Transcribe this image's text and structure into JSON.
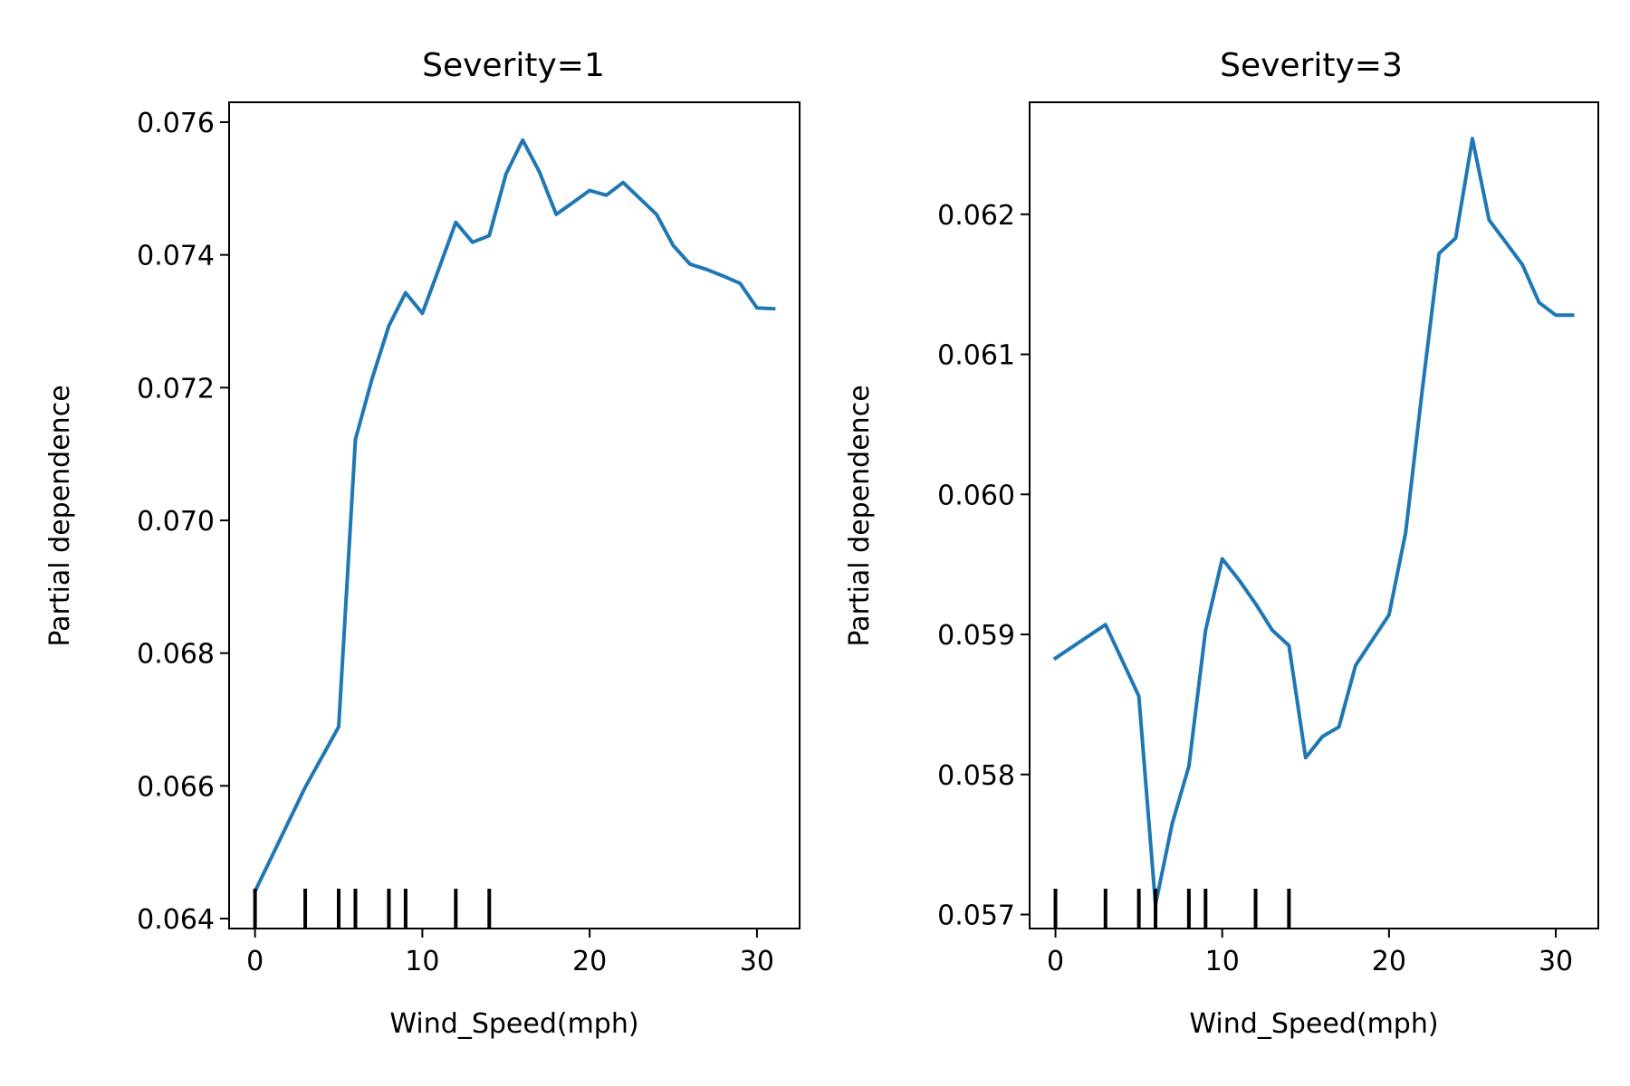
{
  "chart_data": [
    {
      "type": "line",
      "title": "Severity=1",
      "xlabel": "Wind_Speed(mph)",
      "ylabel": "Partial dependence",
      "xlim": [
        -1.55,
        32.55
      ],
      "ylim": [
        0.06385,
        0.0763
      ],
      "xticks": [
        0,
        10,
        20,
        30
      ],
      "xtick_labels": [
        "0",
        "10",
        "20",
        "30"
      ],
      "yticks": [
        0.064,
        0.066,
        0.068,
        0.07,
        0.072,
        0.074,
        0.076
      ],
      "ytick_labels": [
        "0.064",
        "0.066",
        "0.068",
        "0.070",
        "0.072",
        "0.074",
        "0.076"
      ],
      "grid": false,
      "series": [
        {
          "color": "#1f77b4",
          "x": [
            0,
            3,
            5,
            6,
            7,
            8,
            9,
            10,
            11,
            12,
            13,
            14,
            15,
            16,
            17,
            18,
            19,
            20,
            21,
            22,
            23,
            24,
            25,
            26,
            27,
            28,
            29,
            30,
            31
          ],
          "y": [
            0.06441,
            0.06598,
            0.06689,
            0.07122,
            0.07214,
            0.07293,
            0.07343,
            0.07312,
            0.0738,
            0.07449,
            0.07419,
            0.07429,
            0.07522,
            0.07573,
            0.07525,
            0.07461,
            0.07479,
            0.07497,
            0.0749,
            0.07509,
            0.07485,
            0.07461,
            0.07414,
            0.07386,
            0.07378,
            0.07368,
            0.07357,
            0.0732,
            0.07319
          ]
        }
      ],
      "rug_deciles": [
        0,
        3,
        5,
        6,
        8,
        9,
        12,
        14
      ]
    },
    {
      "type": "line",
      "title": "Severity=3",
      "xlabel": "Wind_Speed(mph)",
      "ylabel": "Partial dependence",
      "xlim": [
        -1.55,
        32.55
      ],
      "ylim": [
        0.0569,
        0.0628
      ],
      "xticks": [
        0,
        10,
        20,
        30
      ],
      "xtick_labels": [
        "0",
        "10",
        "20",
        "30"
      ],
      "yticks": [
        0.057,
        0.058,
        0.059,
        0.06,
        0.061,
        0.062
      ],
      "ytick_labels": [
        "0.057",
        "0.058",
        "0.059",
        "0.060",
        "0.061",
        "0.062"
      ],
      "grid": false,
      "series": [
        {
          "color": "#1f77b4",
          "x": [
            0,
            3,
            5,
            6,
            7,
            8,
            9,
            10,
            11,
            12,
            13,
            14,
            15,
            16,
            17,
            18,
            19,
            20,
            21,
            22,
            23,
            24,
            25,
            26,
            27,
            28,
            29,
            30,
            31
          ],
          "y": [
            0.05883,
            0.05907,
            0.05856,
            0.05707,
            0.05765,
            0.05806,
            0.05903,
            0.05954,
            0.05939,
            0.05922,
            0.05903,
            0.05892,
            0.05812,
            0.05827,
            0.05834,
            0.05878,
            0.05896,
            0.05914,
            0.05973,
            0.06075,
            0.06172,
            0.06183,
            0.06254,
            0.06196,
            0.0618,
            0.06164,
            0.06137,
            0.06128,
            0.06128
          ]
        }
      ],
      "rug_deciles": [
        0,
        3,
        5,
        6,
        8,
        9,
        12,
        14
      ]
    }
  ]
}
